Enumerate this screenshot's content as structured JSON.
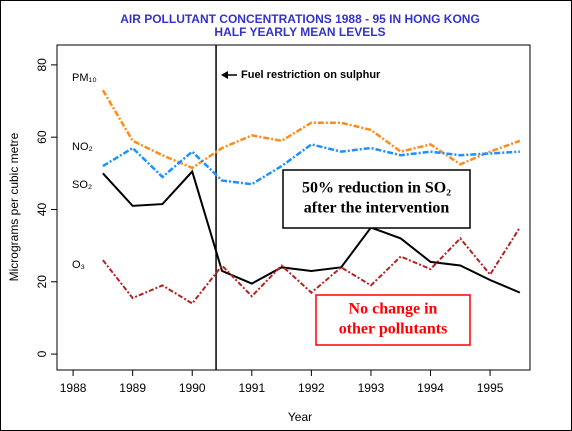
{
  "chart_data": {
    "type": "line",
    "title": [
      "AIR POLLUTANT CONCENTRATIONS 1988 - 95 IN HONG KONG",
      "HALF YEARLY MEAN LEVELS"
    ],
    "x_label": "Year",
    "y_label": "Micrograms per cubic metre",
    "x": [
      1988.5,
      1989,
      1989.5,
      1990,
      1990.5,
      1991,
      1991.5,
      1992,
      1992.5,
      1993,
      1993.5,
      1994,
      1994.5,
      1995,
      1995.5
    ],
    "series": [
      {
        "name": "PM₁₀",
        "color": "#ff8c1a",
        "values": [
          73,
          59,
          55,
          51.5,
          57,
          60.5,
          59,
          64,
          64,
          62,
          56,
          58,
          52.5,
          56,
          59
        ]
      },
      {
        "name": "NO₂",
        "color": "#1e90ff",
        "values": [
          52,
          57,
          49,
          56,
          48,
          47,
          52,
          58,
          56,
          57,
          55,
          56,
          55,
          55.5,
          56
        ]
      },
      {
        "name": "SO₂",
        "color": "#000000",
        "values": [
          50,
          41,
          41.5,
          50.5,
          23,
          19.5,
          24,
          23,
          24,
          35,
          32,
          25.5,
          24.5,
          20.5,
          17
        ]
      },
      {
        "name": "O₃",
        "color": "#b22222",
        "values": [
          26,
          15.5,
          19,
          14,
          24.5,
          16,
          24.5,
          17,
          24,
          19,
          27,
          23.5,
          32,
          22,
          35
        ]
      }
    ],
    "xlim": [
      1987.73,
      1995.67
    ],
    "xticks": [
      1988,
      1989,
      1990,
      1991,
      1992,
      1993,
      1994,
      1995
    ],
    "ylim": [
      -4.4,
      85.5
    ],
    "yticks": [
      0,
      20,
      40,
      60,
      80
    ],
    "intervention": {
      "text": "Fuel restriction on sulphur",
      "x": 1990.4
    },
    "annotations": [
      {
        "lines": [
          "50% reduction in SO₂",
          "after the intervention"
        ],
        "color": "#000000"
      },
      {
        "lines": [
          "No change in",
          "other pollutants"
        ],
        "color": "#ff0000"
      }
    ]
  }
}
